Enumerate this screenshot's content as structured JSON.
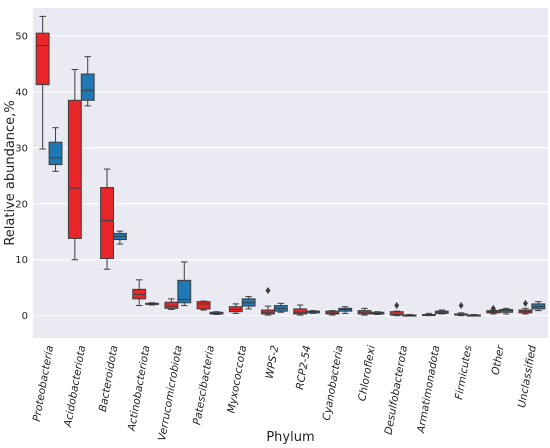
{
  "chart_data": {
    "type": "box",
    "title": "",
    "xlabel": "Phylum",
    "ylabel": "Relative abundance,%",
    "ylim": [
      -4,
      55
    ],
    "yticks": [
      0,
      10,
      20,
      30,
      40,
      50
    ],
    "grid": true,
    "legend": "none",
    "background": "#eaeaf2",
    "categories": [
      "Proteobacteria",
      "Acidobacteriota",
      "Bacteroidota",
      "Actinobacteriota",
      "Verrucomicrobiota",
      "Patescibacteria",
      "Myxococcota",
      "WPS-2",
      "RCP2-54",
      "Cyanobacteria",
      "Chloroflexi",
      "Desulfobacterota",
      "Armatimonadota",
      "Firmicutes",
      "Other",
      "Unclassified"
    ],
    "series": [
      {
        "color": "#e8262a",
        "boxes": [
          {
            "whislo": 29.8,
            "q1": 41.3,
            "med": 48.3,
            "q3": 50.5,
            "whishi": 53.5,
            "fliers": []
          },
          {
            "whislo": 10.0,
            "q1": 13.8,
            "med": 22.8,
            "q3": 38.5,
            "whishi": 44.0,
            "fliers": []
          },
          {
            "whislo": 8.3,
            "q1": 10.2,
            "med": 17.0,
            "q3": 22.9,
            "whishi": 26.2,
            "fliers": []
          },
          {
            "whislo": 1.8,
            "q1": 3.0,
            "med": 3.8,
            "q3": 4.7,
            "whishi": 6.4,
            "fliers": []
          },
          {
            "whislo": 1.1,
            "q1": 1.3,
            "med": 1.7,
            "q3": 2.4,
            "whishi": 3.0,
            "fliers": []
          },
          {
            "whislo": 1.0,
            "q1": 1.2,
            "med": 2.1,
            "q3": 2.5,
            "whishi": 2.6,
            "fliers": []
          },
          {
            "whislo": 0.4,
            "q1": 0.7,
            "med": 1.1,
            "q3": 1.6,
            "whishi": 2.1,
            "fliers": []
          },
          {
            "whislo": 0.1,
            "q1": 0.3,
            "med": 0.6,
            "q3": 1.0,
            "whishi": 1.7,
            "fliers": [
              4.5
            ]
          },
          {
            "whislo": 0.1,
            "q1": 0.3,
            "med": 0.6,
            "q3": 1.2,
            "whishi": 1.9,
            "fliers": []
          },
          {
            "whislo": 0.1,
            "q1": 0.3,
            "med": 0.5,
            "q3": 0.8,
            "whishi": 0.9,
            "fliers": []
          },
          {
            "whislo": 0.1,
            "q1": 0.3,
            "med": 0.6,
            "q3": 0.9,
            "whishi": 1.3,
            "fliers": []
          },
          {
            "whislo": 0.0,
            "q1": 0.1,
            "med": 0.2,
            "q3": 0.7,
            "whishi": 0.8,
            "fliers": [
              1.8
            ]
          },
          {
            "whislo": 0.0,
            "q1": 0.05,
            "med": 0.1,
            "q3": 0.2,
            "whishi": 0.4,
            "fliers": []
          },
          {
            "whislo": 0.0,
            "q1": 0.1,
            "med": 0.2,
            "q3": 0.3,
            "whishi": 0.5,
            "fliers": [
              1.8
            ]
          },
          {
            "whislo": 0.3,
            "q1": 0.5,
            "med": 0.7,
            "q3": 0.9,
            "whishi": 1.0,
            "fliers": [
              1.3
            ]
          },
          {
            "whislo": 0.3,
            "q1": 0.5,
            "med": 0.8,
            "q3": 1.0,
            "whishi": 1.3,
            "fliers": [
              2.2
            ]
          }
        ]
      },
      {
        "color": "#1f77b4",
        "boxes": [
          {
            "whislo": 25.8,
            "q1": 27.0,
            "med": 28.2,
            "q3": 31.0,
            "whishi": 33.6,
            "fliers": []
          },
          {
            "whislo": 37.5,
            "q1": 38.5,
            "med": 40.3,
            "q3": 43.2,
            "whishi": 46.3,
            "fliers": []
          },
          {
            "whislo": 12.8,
            "q1": 13.6,
            "med": 14.2,
            "q3": 14.7,
            "whishi": 15.1,
            "fliers": []
          },
          {
            "whislo": 1.9,
            "q1": 2.0,
            "med": 2.1,
            "q3": 2.2,
            "whishi": 2.3,
            "fliers": []
          },
          {
            "whislo": 1.8,
            "q1": 2.3,
            "med": 2.9,
            "q3": 6.3,
            "whishi": 9.6,
            "fliers": []
          },
          {
            "whislo": 0.2,
            "q1": 0.3,
            "med": 0.4,
            "q3": 0.6,
            "whishi": 0.7,
            "fliers": []
          },
          {
            "whislo": 1.2,
            "q1": 1.7,
            "med": 2.3,
            "q3": 3.0,
            "whishi": 3.4,
            "fliers": []
          },
          {
            "whislo": 0.6,
            "q1": 0.8,
            "med": 1.3,
            "q3": 1.8,
            "whishi": 2.2,
            "fliers": []
          },
          {
            "whislo": 0.4,
            "q1": 0.5,
            "med": 0.7,
            "q3": 0.8,
            "whishi": 0.9,
            "fliers": []
          },
          {
            "whislo": 0.4,
            "q1": 0.8,
            "med": 1.1,
            "q3": 1.3,
            "whishi": 1.6,
            "fliers": []
          },
          {
            "whislo": 0.2,
            "q1": 0.3,
            "med": 0.4,
            "q3": 0.6,
            "whishi": 0.7,
            "fliers": []
          },
          {
            "whislo": 0.0,
            "q1": 0.0,
            "med": 0.1,
            "q3": 0.1,
            "whishi": 0.2,
            "fliers": []
          },
          {
            "whislo": 0.3,
            "q1": 0.4,
            "med": 0.6,
            "q3": 0.8,
            "whishi": 1.0,
            "fliers": []
          },
          {
            "whislo": 0.0,
            "q1": 0.0,
            "med": 0.1,
            "q3": 0.1,
            "whishi": 0.2,
            "fliers": []
          },
          {
            "whislo": 0.3,
            "q1": 0.6,
            "med": 0.9,
            "q3": 1.1,
            "whishi": 1.3,
            "fliers": []
          },
          {
            "whislo": 0.9,
            "q1": 1.2,
            "med": 1.6,
            "q3": 2.1,
            "whishi": 2.5,
            "fliers": []
          }
        ]
      }
    ]
  }
}
